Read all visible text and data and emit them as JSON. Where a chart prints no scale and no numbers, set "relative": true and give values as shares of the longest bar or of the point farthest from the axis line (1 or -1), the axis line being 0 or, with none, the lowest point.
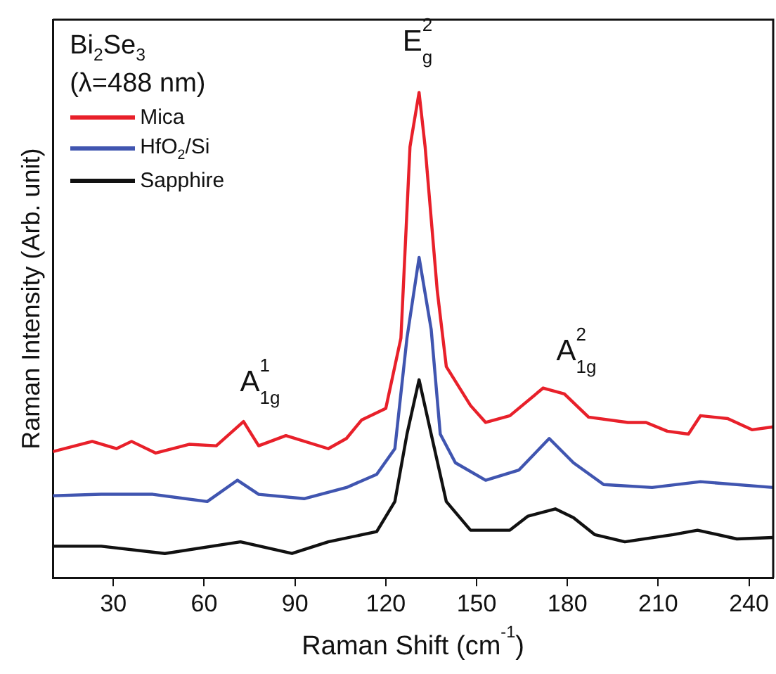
{
  "chart_data": {
    "type": "line",
    "relative": true,
    "xlabel": "Raman Shift (cm$^{-1}$)",
    "ylabel": "Raman Intensity (Arb. unit)",
    "xlim": [
      10,
      248
    ],
    "xticks": [
      30,
      60,
      90,
      120,
      150,
      180,
      210,
      240
    ],
    "grid": false,
    "legend": "top left",
    "marker": "none",
    "line_style": "solid",
    "annotations": [
      "Bi$_{2}$Se$_{3}$",
      "(λ=488 nm)",
      "A$^{1}$$_{1g}$",
      "E$^{2}$$_{g}$",
      "A$^{2}$$_{1g}$"
    ],
    "series": [
      {
        "name": "Mica",
        "color": "#e8202a",
        "x": [
          10,
          23,
          31,
          36,
          44,
          55,
          64,
          73,
          78,
          87,
          101,
          107,
          112,
          120,
          125,
          128,
          131,
          133,
          137,
          140,
          148,
          153,
          161,
          172,
          179,
          187,
          200,
          206,
          213,
          220,
          224,
          233,
          241,
          248
        ],
        "values": [
          0.26,
          0.281,
          0.266,
          0.281,
          0.257,
          0.275,
          0.272,
          0.322,
          0.272,
          0.293,
          0.266,
          0.287,
          0.325,
          0.349,
          0.494,
          0.888,
          1,
          0.888,
          0.592,
          0.435,
          0.355,
          0.32,
          0.334,
          0.391,
          0.379,
          0.331,
          0.32,
          0.32,
          0.302,
          0.296,
          0.334,
          0.328,
          0.305,
          0.311
        ]
      },
      {
        "name": "HfO$_{2}$/Si",
        "color": "#4055b0",
        "x": [
          10,
          26,
          43,
          61,
          71,
          78,
          93,
          107,
          117,
          123,
          127,
          131,
          135,
          138,
          143,
          153,
          164,
          174,
          182,
          192,
          208,
          224,
          248
        ],
        "values": [
          0.169,
          0.172,
          0.172,
          0.157,
          0.201,
          0.172,
          0.163,
          0.186,
          0.213,
          0.266,
          0.494,
          0.66,
          0.512,
          0.296,
          0.237,
          0.201,
          0.222,
          0.287,
          0.237,
          0.192,
          0.186,
          0.198,
          0.186
        ]
      },
      {
        "name": "Sapphire",
        "color": "#111111",
        "x": [
          10,
          26,
          47,
          72,
          89,
          101,
          117,
          123,
          127,
          131,
          135,
          140,
          148,
          161,
          167,
          176,
          182,
          189,
          199,
          215,
          223,
          236,
          248
        ],
        "values": [
          0.065,
          0.065,
          0.05,
          0.074,
          0.05,
          0.074,
          0.095,
          0.157,
          0.296,
          0.408,
          0.296,
          0.157,
          0.098,
          0.098,
          0.127,
          0.142,
          0.124,
          0.089,
          0.074,
          0.089,
          0.098,
          0.08,
          0.083
        ]
      }
    ]
  }
}
